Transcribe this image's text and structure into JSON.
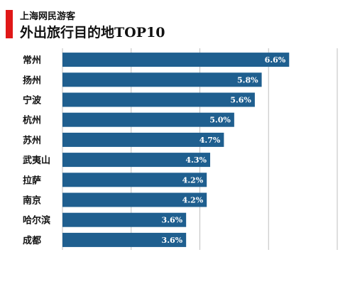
{
  "header": {
    "title_line1": "上海网民游客",
    "title_line2": "外出旅行目的地TOP10"
  },
  "colors": {
    "bar": "#1f5f8f",
    "accent": "#e01818",
    "grid": "#bfbfbf"
  },
  "chart_data": {
    "type": "bar",
    "orientation": "horizontal",
    "categories": [
      "常州",
      "扬州",
      "宁波",
      "杭州",
      "苏州",
      "武夷山",
      "拉萨",
      "南京",
      "哈尔滨",
      "成都"
    ],
    "values": [
      6.6,
      5.8,
      5.6,
      5.0,
      4.7,
      4.3,
      4.2,
      4.2,
      3.6,
      3.6
    ],
    "value_labels": [
      "6.6%",
      "5.8%",
      "5.6%",
      "5.0%",
      "4.7%",
      "4.3%",
      "4.2%",
      "4.2%",
      "3.6%",
      "3.6%"
    ],
    "xlim": [
      0,
      8
    ],
    "grid": true
  }
}
